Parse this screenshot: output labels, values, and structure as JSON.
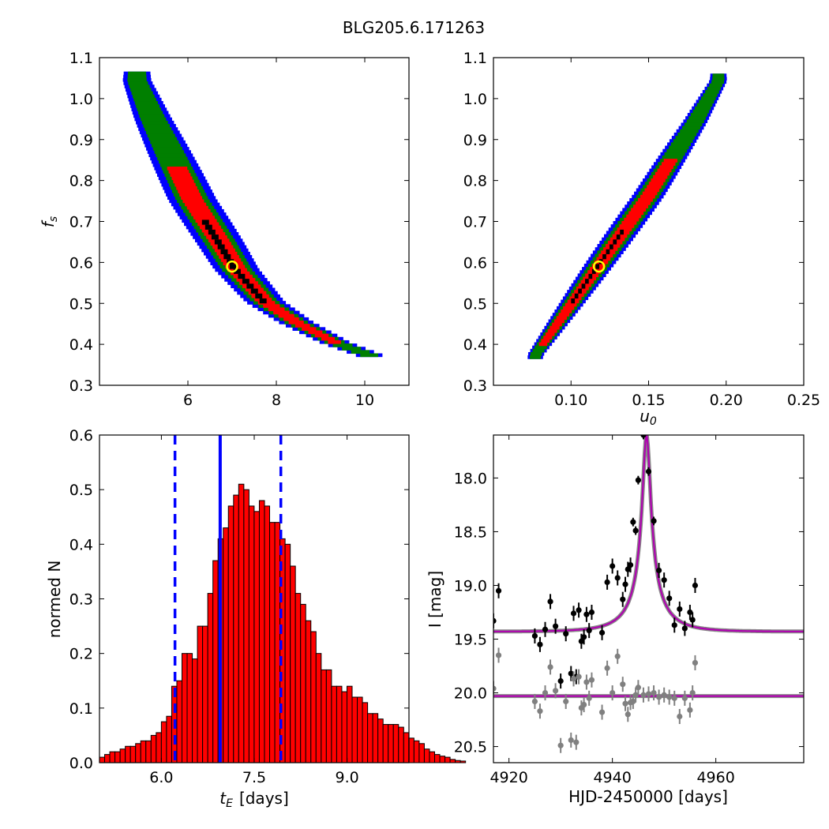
{
  "title": "BLG205.6.171263",
  "colors": {
    "blue": "#0000ff",
    "green": "#007f00",
    "red": "#ff0000",
    "black": "#000000",
    "best_fit": "#ffff00",
    "model": "#b000b0",
    "grey": "#808080"
  },
  "panels": {
    "tl": {
      "ylabel": "f_s",
      "xticks": [
        "6",
        "8",
        "10"
      ],
      "yticks": [
        "0.3",
        "0.4",
        "0.5",
        "0.6",
        "0.7",
        "0.8",
        "0.9",
        "1.0",
        "1.1"
      ]
    },
    "tr": {
      "xlabel": "u_0",
      "xticks": [
        "0.10",
        "0.15",
        "0.20",
        "0.25"
      ],
      "yticks": [
        "0.3",
        "0.4",
        "0.5",
        "0.6",
        "0.7",
        "0.8",
        "0.9",
        "1.0",
        "1.1"
      ]
    },
    "bl": {
      "xlabel_sym": "t",
      "xlabel_sub": "E",
      "xlabel_unit": "[days]",
      "ylabel": "normed N",
      "xticks": [
        "6.0",
        "7.5",
        "9.0"
      ],
      "yticks": [
        "0.0",
        "0.1",
        "0.2",
        "0.3",
        "0.4",
        "0.5",
        "0.6"
      ]
    },
    "br": {
      "xlabel": "HJD-2450000 [days]",
      "ylabel": "I [mag]",
      "xticks": [
        "4920",
        "4940",
        "4960"
      ],
      "yticks": [
        "18.0",
        "18.5",
        "19.0",
        "19.5",
        "20.0",
        "20.5"
      ]
    }
  },
  "chart_data": [
    {
      "panel": "tl",
      "type": "heatmap",
      "xlabel": "",
      "ylabel": "f_s",
      "xlim": [
        4,
        11
      ],
      "ylim": [
        0.3,
        1.1
      ],
      "confidence_band": {
        "f_s": [
          1.04,
          0.95,
          0.85,
          0.75,
          0.65,
          0.58,
          0.5,
          0.45,
          0.4,
          0.37
        ],
        "t_E": [
          4.85,
          5.2,
          5.65,
          6.1,
          6.7,
          7.1,
          7.75,
          8.45,
          9.35,
          10.1
        ]
      },
      "best_fit": {
        "t_E": 7.0,
        "f_s": 0.59
      }
    },
    {
      "panel": "tr",
      "type": "heatmap",
      "xlabel": "u_0",
      "ylabel": "",
      "xlim": [
        0.05,
        0.25
      ],
      "ylim": [
        0.3,
        1.1
      ],
      "confidence_band": {
        "u_0": [
          0.077,
          0.09,
          0.105,
          0.12,
          0.135,
          0.15,
          0.165,
          0.18,
          0.195
        ],
        "f_s": [
          0.37,
          0.44,
          0.52,
          0.6,
          0.68,
          0.76,
          0.85,
          0.94,
          1.04
        ]
      },
      "best_fit": {
        "u_0": 0.118,
        "f_s": 0.59
      }
    },
    {
      "panel": "bl",
      "type": "bar",
      "xlabel": "t_E [days]",
      "ylabel": "normed N",
      "xlim": [
        5.0,
        10.0
      ],
      "ylim": [
        0,
        0.6
      ],
      "bin_start": 5.0,
      "bin_width": 0.0833,
      "values": [
        0.01,
        0.015,
        0.02,
        0.02,
        0.025,
        0.03,
        0.03,
        0.035,
        0.04,
        0.04,
        0.05,
        0.055,
        0.075,
        0.085,
        0.14,
        0.15,
        0.2,
        0.2,
        0.19,
        0.25,
        0.25,
        0.31,
        0.37,
        0.41,
        0.43,
        0.47,
        0.49,
        0.51,
        0.5,
        0.47,
        0.46,
        0.48,
        0.47,
        0.44,
        0.44,
        0.41,
        0.4,
        0.36,
        0.31,
        0.29,
        0.26,
        0.24,
        0.2,
        0.17,
        0.17,
        0.14,
        0.14,
        0.13,
        0.14,
        0.12,
        0.12,
        0.11,
        0.09,
        0.09,
        0.08,
        0.07,
        0.07,
        0.07,
        0.065,
        0.055,
        0.045,
        0.04,
        0.035,
        0.025,
        0.02,
        0.015,
        0.012,
        0.01,
        0.006,
        0.004,
        0.003
      ],
      "median": 6.95,
      "lower_bound": 6.22,
      "upper_bound": 7.93
    },
    {
      "panel": "br",
      "type": "scatter",
      "xlabel": "HJD-2450000 [days]",
      "ylabel": "I [mag]",
      "xlim": [
        4917,
        4977
      ],
      "ylim": [
        20.65,
        17.6
      ],
      "series": [
        {
          "points": [
            [
              4917,
              19.33
            ],
            [
              4918,
              19.05
            ],
            [
              4925,
              19.47
            ],
            [
              4926,
              19.55
            ],
            [
              4927,
              19.41
            ],
            [
              4928,
              19.15
            ],
            [
              4929,
              19.38
            ],
            [
              4930,
              19.89
            ],
            [
              4931,
              19.45
            ],
            [
              4932,
              19.82
            ],
            [
              4932.5,
              19.26
            ],
            [
              4933,
              19.85
            ],
            [
              4933.5,
              19.23
            ],
            [
              4934,
              19.52
            ],
            [
              4934.5,
              19.48
            ],
            [
              4935,
              19.27
            ],
            [
              4935.5,
              19.42
            ],
            [
              4936,
              19.25
            ],
            [
              4938,
              19.44
            ],
            [
              4939,
              18.97
            ],
            [
              4940,
              18.82
            ],
            [
              4941,
              18.93
            ],
            [
              4942,
              19.13
            ],
            [
              4942.5,
              18.99
            ],
            [
              4943,
              18.85
            ],
            [
              4943.5,
              18.81
            ],
            [
              4944,
              18.41
            ],
            [
              4944.5,
              18.49
            ],
            [
              4945,
              18.02
            ],
            [
              4946,
              17.6
            ],
            [
              4947,
              17.94
            ],
            [
              4948,
              18.4
            ],
            [
              4949,
              18.86
            ],
            [
              4950,
              18.95
            ],
            [
              4951,
              19.12
            ],
            [
              4952,
              19.37
            ],
            [
              4953,
              19.22
            ],
            [
              4954,
              19.4
            ],
            [
              4955,
              19.25
            ],
            [
              4955.5,
              19.32
            ],
            [
              4956,
              19.0
            ]
          ]
        },
        {
          "points": [
            [
              4917,
              19.96
            ],
            [
              4918,
              19.65
            ],
            [
              4925,
              20.08
            ],
            [
              4926,
              20.17
            ],
            [
              4927,
              20.0
            ],
            [
              4928,
              19.76
            ],
            [
              4929,
              19.98
            ],
            [
              4930,
              20.49
            ],
            [
              4931,
              20.08
            ],
            [
              4932,
              20.44
            ],
            [
              4932.5,
              19.87
            ],
            [
              4933,
              20.46
            ],
            [
              4933.5,
              19.85
            ],
            [
              4934,
              20.14
            ],
            [
              4934.5,
              20.11
            ],
            [
              4935,
              19.9
            ],
            [
              4935.5,
              20.05
            ],
            [
              4936,
              19.88
            ],
            [
              4938,
              20.18
            ],
            [
              4939,
              19.77
            ],
            [
              4940,
              20.0
            ],
            [
              4941,
              19.66
            ],
            [
              4942,
              19.92
            ],
            [
              4942.5,
              20.1
            ],
            [
              4943,
              20.2
            ],
            [
              4943.5,
              20.09
            ],
            [
              4944,
              20.08
            ],
            [
              4944.5,
              20.02
            ],
            [
              4945,
              19.95
            ],
            [
              4946,
              20.02
            ],
            [
              4947,
              20.01
            ],
            [
              4948,
              20.0
            ],
            [
              4949,
              20.04
            ],
            [
              4950,
              20.02
            ],
            [
              4951,
              20.04
            ],
            [
              4952,
              20.05
            ],
            [
              4953,
              20.22
            ],
            [
              4954,
              20.05
            ],
            [
              4955,
              20.16
            ],
            [
              4955.5,
              20.0
            ],
            [
              4956,
              19.72
            ]
          ]
        }
      ],
      "model": {
        "baseline": 19.43,
        "peak": 17.6,
        "t0": 4946.6,
        "tE": 7.0,
        "u0": 0.118
      },
      "baseline_model": 20.03
    }
  ]
}
